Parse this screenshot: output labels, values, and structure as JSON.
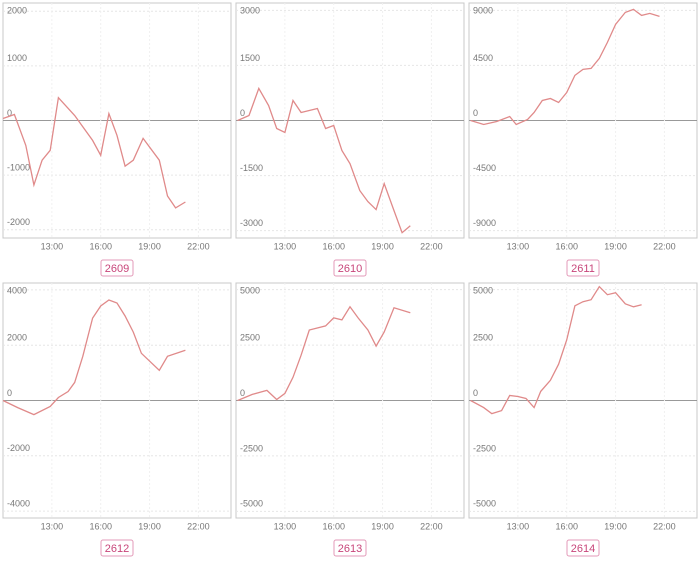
{
  "chart_data": [
    {
      "type": "line",
      "title": "2609",
      "color": "#e08a8a",
      "grid": true,
      "x": [
        10.0,
        10.7,
        11.4,
        11.9,
        12.4,
        12.9,
        13.4,
        14.4,
        15.5,
        16.0,
        16.5,
        17.0,
        17.5,
        18.0,
        18.6,
        19.6,
        20.1,
        20.6,
        21.2
      ],
      "values": [
        36,
        109,
        -455,
        -1180,
        -727,
        -545,
        418,
        91,
        -364,
        -636,
        127,
        -273,
        -836,
        -727,
        -327,
        -727,
        -1382,
        -1600,
        -1491
      ],
      "xlim": [
        10,
        24
      ],
      "xticks": [
        {
          "value": 13,
          "label": "13:00"
        },
        {
          "value": 16,
          "label": "16:00"
        },
        {
          "value": 19,
          "label": "19:00"
        },
        {
          "value": 22,
          "label": "22:00"
        }
      ],
      "ylim": [
        -2150,
        2150
      ],
      "yticks": [
        -2000,
        -1000,
        0,
        1000,
        2000
      ]
    },
    {
      "type": "line",
      "title": "2610",
      "color": "#e08a8a",
      "grid": true,
      "x": [
        10.1,
        10.8,
        11.4,
        12.0,
        12.5,
        13.0,
        13.5,
        14.0,
        15.0,
        15.5,
        16.0,
        16.5,
        17.0,
        17.6,
        18.1,
        18.6,
        19.1,
        19.7,
        20.2,
        20.7
      ],
      "values": [
        0,
        136,
        873,
        409,
        -218,
        -327,
        545,
        218,
        327,
        -218,
        -136,
        -818,
        -1173,
        -1909,
        -2209,
        -2427,
        -1718,
        -2455,
        -3055,
        -2864
      ],
      "xlim": [
        10,
        24
      ],
      "xticks": [
        {
          "value": 13,
          "label": "13:00"
        },
        {
          "value": 16,
          "label": "16:00"
        },
        {
          "value": 19,
          "label": "19:00"
        },
        {
          "value": 22,
          "label": "22:00"
        }
      ],
      "ylim": [
        -3200,
        3200
      ],
      "yticks": [
        -3000,
        -1500,
        0,
        1500,
        3000
      ]
    },
    {
      "type": "line",
      "title": "2611",
      "color": "#e08a8a",
      "grid": true,
      "x": [
        10.1,
        10.9,
        11.7,
        12.5,
        12.9,
        13.6,
        14.0,
        14.5,
        15.0,
        15.5,
        16.0,
        16.5,
        17.0,
        17.5,
        18.0,
        18.5,
        19.0,
        19.6,
        20.1,
        20.6,
        21.1,
        21.7
      ],
      "values": [
        0,
        -327,
        -82,
        327,
        -327,
        82,
        654,
        1636,
        1800,
        1473,
        2291,
        3682,
        4173,
        4254,
        5072,
        6381,
        7854,
        8836,
        9081,
        8590,
        8754,
        8508
      ],
      "xlim": [
        10,
        24
      ],
      "xticks": [
        {
          "value": 13,
          "label": "13:00"
        },
        {
          "value": 16,
          "label": "16:00"
        },
        {
          "value": 19,
          "label": "19:00"
        },
        {
          "value": 22,
          "label": "22:00"
        }
      ],
      "ylim": [
        -9600,
        9600
      ],
      "yticks": [
        -9000,
        -4500,
        0,
        4500,
        9000
      ]
    },
    {
      "type": "line",
      "title": "2612",
      "color": "#e08a8a",
      "grid": true,
      "x": [
        10.0,
        10.9,
        11.9,
        12.9,
        13.4,
        14.0,
        14.4,
        14.9,
        15.5,
        16.0,
        16.5,
        17.0,
        17.5,
        18.0,
        18.5,
        19.6,
        20.1,
        21.2
      ],
      "values": [
        0,
        -255,
        -509,
        -218,
        109,
        327,
        655,
        1600,
        2982,
        3418,
        3636,
        3527,
        3055,
        2473,
        1709,
        1091,
        1600,
        1818
      ],
      "xlim": [
        10,
        24
      ],
      "xticks": [
        {
          "value": 13,
          "label": "13:00"
        },
        {
          "value": 16,
          "label": "16:00"
        },
        {
          "value": 19,
          "label": "19:00"
        },
        {
          "value": 22,
          "label": "22:00"
        }
      ],
      "ylim": [
        -4250,
        4250
      ],
      "yticks": [
        -4000,
        -2000,
        0,
        2000,
        4000
      ]
    },
    {
      "type": "line",
      "title": "2613",
      "color": "#e08a8a",
      "grid": true,
      "x": [
        10.1,
        11.0,
        11.9,
        12.5,
        13.0,
        13.5,
        14.0,
        14.5,
        15.5,
        16.0,
        16.5,
        17.0,
        17.5,
        18.1,
        18.6,
        19.1,
        19.7,
        20.7
      ],
      "values": [
        0,
        273,
        455,
        45,
        318,
        1045,
        2045,
        3182,
        3364,
        3727,
        3636,
        4227,
        3727,
        3182,
        2455,
        3091,
        4182,
        3955
      ],
      "xlim": [
        10,
        24
      ],
      "xticks": [
        {
          "value": 13,
          "label": "13:00"
        },
        {
          "value": 16,
          "label": "16:00"
        },
        {
          "value": 19,
          "label": "19:00"
        },
        {
          "value": 22,
          "label": "22:00"
        }
      ],
      "ylim": [
        -5300,
        5300
      ],
      "yticks": [
        -5000,
        -2500,
        0,
        2500,
        5000
      ]
    },
    {
      "type": "line",
      "title": "2614",
      "color": "#e08a8a",
      "grid": true,
      "x": [
        10.1,
        10.9,
        11.4,
        12.0,
        12.5,
        13.0,
        13.5,
        14.0,
        14.4,
        15.0,
        15.5,
        16.0,
        16.5,
        17.0,
        17.5,
        18.0,
        18.5,
        19.0,
        19.6,
        20.1,
        20.6
      ],
      "values": [
        0,
        -318,
        -591,
        -455,
        227,
        182,
        91,
        -318,
        409,
        909,
        1636,
        2727,
        4273,
        4455,
        4545,
        5136,
        4773,
        4864,
        4364,
        4227,
        4318
      ],
      "xlim": [
        10,
        24
      ],
      "xticks": [
        {
          "value": 13,
          "label": "13:00"
        },
        {
          "value": 16,
          "label": "16:00"
        },
        {
          "value": 19,
          "label": "19:00"
        },
        {
          "value": 22,
          "label": "22:00"
        }
      ],
      "ylim": [
        -5300,
        5300
      ],
      "yticks": [
        -5000,
        -2500,
        0,
        2500,
        5000
      ]
    }
  ]
}
